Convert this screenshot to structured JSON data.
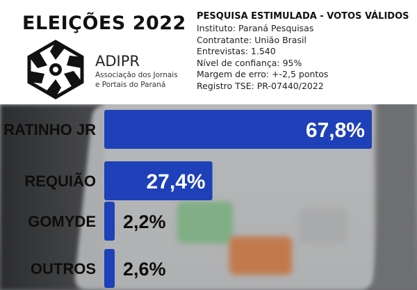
{
  "header": {
    "title": "ELEIÇÕES 2022",
    "logo": {
      "name": "ADIPR",
      "subtitle_line1": "Associação dos Jornais",
      "subtitle_line2": "e Portais do Paraná"
    },
    "info": {
      "title": "PESQUISA ESTIMULADA - VOTOS VÁLIDOS",
      "lines": [
        "Instituto: Paraná Pesquisas",
        "Contratante: União Brasil",
        "Entrevistas: 1.540",
        "Nível de confiança: 95%",
        "Margem de erro: +-2,5 pontos",
        "Registro TSE: PR-07440/2022"
      ]
    }
  },
  "colors": {
    "bar": "#1e40b8",
    "header_bg": "#ffffff"
  },
  "chart_data": {
    "type": "bar",
    "orientation": "horizontal",
    "categories": [
      "RATINHO JR",
      "REQUIÃO",
      "GOMYDE",
      "OUTROS"
    ],
    "values": [
      67.8,
      27.4,
      2.2,
      2.6
    ],
    "value_labels": [
      "67,8%",
      "27,4%",
      "2,2%",
      "2,6%"
    ],
    "xlim": [
      0,
      70
    ],
    "grid": false,
    "legend": "none"
  }
}
